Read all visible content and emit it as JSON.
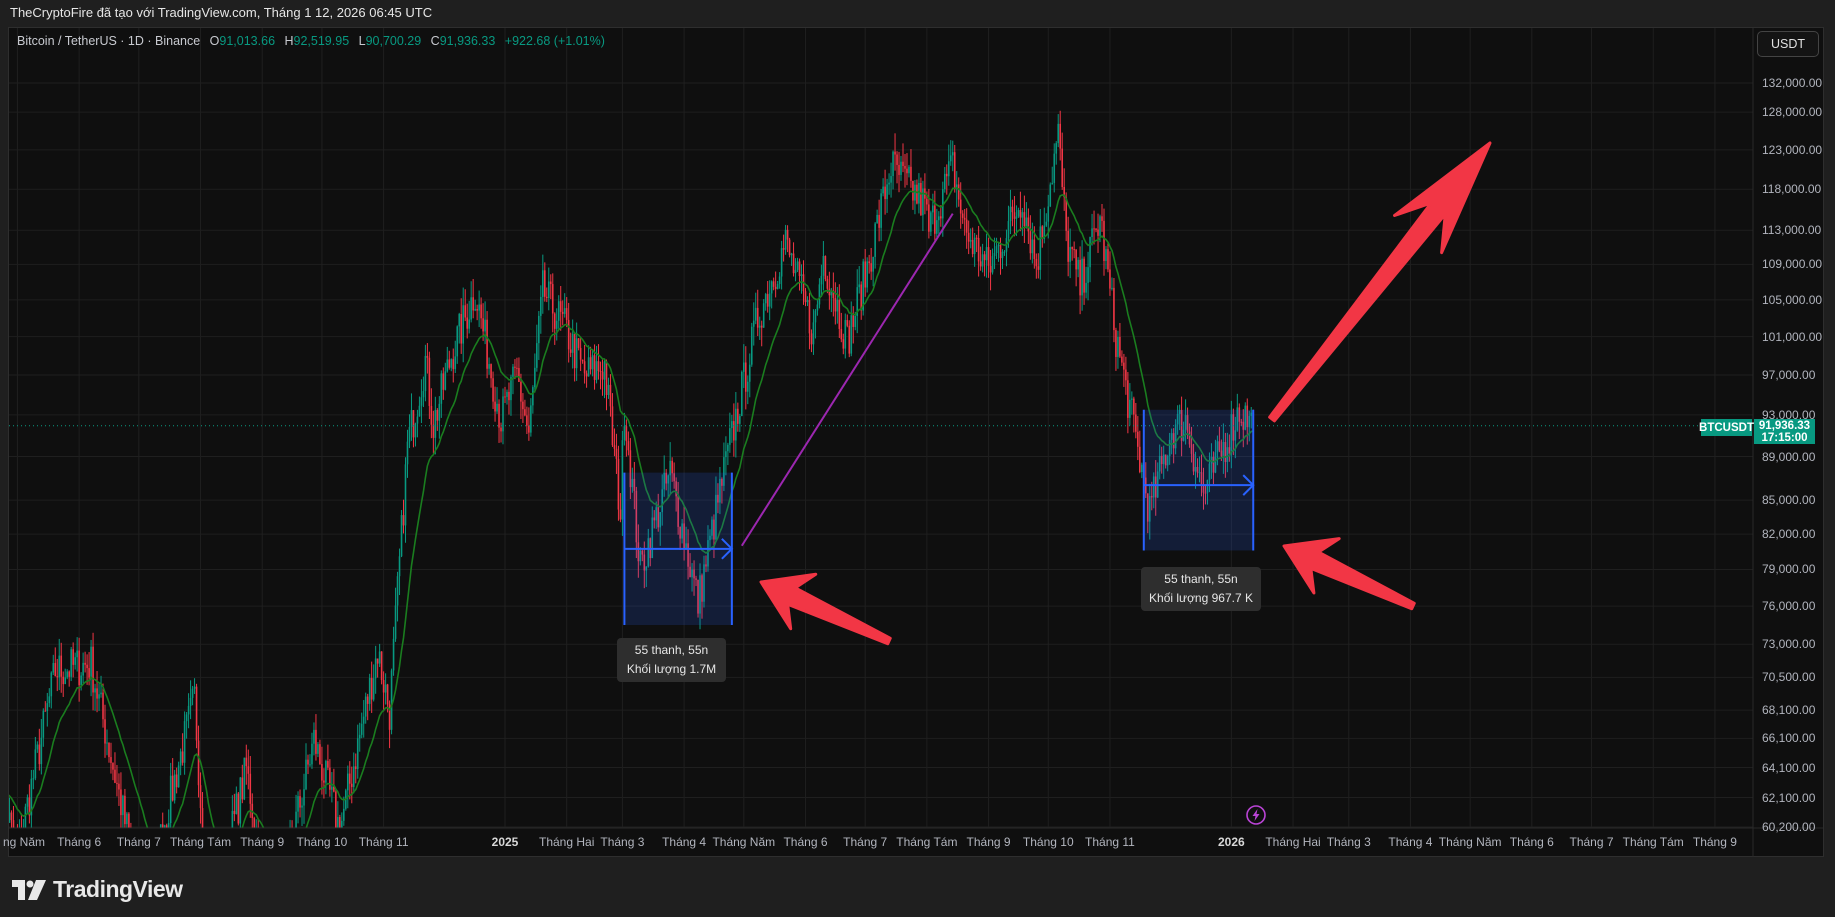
{
  "title_bar": "TheCryptoFire đã tạo với TradingView.com, Tháng 1 12, 2026 06:45 UTC",
  "legend": {
    "symbol": "Bitcoin / TetherUS · 1D · Binance",
    "open_label": "O",
    "open": "91,013.66",
    "high_label": "H",
    "high": "92,519.95",
    "low_label": "L",
    "low": "90,700.29",
    "close_label": "C",
    "close": "91,936.33",
    "change": "+922.68 (+1.01%)"
  },
  "currency_button": "USDT",
  "last_price": {
    "symbol": "BTCUSDT",
    "price": "91,936.33",
    "countdown": "17:15:00"
  },
  "measure_boxes": [
    {
      "bars": "55 thanh, 55n",
      "volume": "Khối lượng 1.7M"
    },
    {
      "bars": "55 thanh, 55n",
      "volume": "Khối lượng 967.7 K"
    }
  ],
  "logo_text": "TradingView",
  "colors": {
    "up": "#089981",
    "down": "#f23645",
    "ma": "#1a7d1f",
    "measure": "#2962ff",
    "trendline": "#9c27b0",
    "arrows": "#f23645"
  },
  "icons": {
    "alert": "lightning-icon",
    "logo": "tradingview-logo"
  },
  "chart_data": {
    "type": "candlestick",
    "symbol": "BTCUSDT",
    "interval": "1D",
    "scale": "log",
    "ylim": [
      60200,
      132000
    ],
    "grid": true,
    "y_ticks": [
      "132,000.00",
      "128,000.00",
      "123,000.00",
      "118,000.00",
      "113,000.00",
      "109,000.00",
      "105,000.00",
      "101,000.00",
      "97,000.00",
      "93,000.00",
      "89,000.00",
      "85,000.00",
      "82,000.00",
      "79,000.00",
      "76,000.00",
      "73,000.00",
      "70,500.00",
      "68,100.00",
      "66,100.00",
      "64,100.00",
      "62,100.00",
      "60,200.00"
    ],
    "x_ticks": [
      {
        "label": "ng Năm",
        "date": "2024-05-01"
      },
      {
        "label": "Tháng 6",
        "date": "2024-06-01"
      },
      {
        "label": "Tháng 7",
        "date": "2024-07-01"
      },
      {
        "label": "Tháng Tám",
        "date": "2024-08-01"
      },
      {
        "label": "Tháng 9",
        "date": "2024-09-01"
      },
      {
        "label": "Tháng 10",
        "date": "2024-10-01"
      },
      {
        "label": "Tháng 11",
        "date": "2024-11-01"
      },
      {
        "label": "2025",
        "date": "2025-01-01",
        "year": true
      },
      {
        "label": "Tháng Hai",
        "date": "2025-02-01"
      },
      {
        "label": "Tháng 3",
        "date": "2025-03-01"
      },
      {
        "label": "Tháng 4",
        "date": "2025-04-01"
      },
      {
        "label": "Tháng Năm",
        "date": "2025-05-01"
      },
      {
        "label": "Tháng 6",
        "date": "2025-06-01"
      },
      {
        "label": "Tháng 7",
        "date": "2025-07-01"
      },
      {
        "label": "Tháng Tám",
        "date": "2025-08-01"
      },
      {
        "label": "Tháng 9",
        "date": "2025-09-01"
      },
      {
        "label": "Tháng 10",
        "date": "2025-10-01"
      },
      {
        "label": "Tháng 11",
        "date": "2025-11-01"
      },
      {
        "label": "2026",
        "date": "2026-01-01",
        "year": true
      },
      {
        "label": "Tháng Hai",
        "date": "2026-02-01"
      },
      {
        "label": "Tháng 3",
        "date": "2026-03-01"
      },
      {
        "label": "Tháng 4",
        "date": "2026-04-01"
      },
      {
        "label": "Tháng Năm",
        "date": "2026-05-01"
      },
      {
        "label": "Tháng 6",
        "date": "2026-06-01"
      },
      {
        "label": "Tháng 7",
        "date": "2026-07-01"
      },
      {
        "label": "Tháng Tám",
        "date": "2026-08-01"
      },
      {
        "label": "Tháng 9",
        "date": "2026-09-01"
      }
    ],
    "close_path": [
      [
        "2024-04-20",
        64000
      ],
      [
        "2024-05-01",
        58500
      ],
      [
        "2024-05-20",
        71000
      ],
      [
        "2024-06-07",
        71500
      ],
      [
        "2024-06-24",
        60500
      ],
      [
        "2024-07-05",
        56000
      ],
      [
        "2024-07-29",
        69000
      ],
      [
        "2024-08-05",
        54000
      ],
      [
        "2024-08-24",
        64000
      ],
      [
        "2024-09-06",
        54000
      ],
      [
        "2024-09-27",
        66000
      ],
      [
        "2024-10-10",
        60000
      ],
      [
        "2024-10-29",
        72500
      ],
      [
        "2024-11-04",
        68000
      ],
      [
        "2024-11-13",
        90000
      ],
      [
        "2024-11-22",
        98500
      ],
      [
        "2024-11-26",
        92000
      ],
      [
        "2024-12-05",
        99000
      ],
      [
        "2024-12-17",
        106000
      ],
      [
        "2024-12-30",
        92500
      ],
      [
        "2025-01-07",
        97000
      ],
      [
        "2025-01-13",
        91000
      ],
      [
        "2025-01-20",
        106000
      ],
      [
        "2025-01-31",
        102000
      ],
      [
        "2025-02-10",
        97000
      ],
      [
        "2025-02-20",
        98000
      ],
      [
        "2025-02-28",
        84000
      ],
      [
        "2025-03-02",
        94000
      ],
      [
        "2025-03-10",
        79000
      ],
      [
        "2025-03-25",
        87500
      ],
      [
        "2025-04-08",
        76300
      ],
      [
        "2025-04-21",
        87500
      ],
      [
        "2025-05-08",
        103000
      ],
      [
        "2025-05-22",
        111500
      ],
      [
        "2025-06-05",
        101500
      ],
      [
        "2025-06-10",
        110000
      ],
      [
        "2025-06-22",
        100500
      ],
      [
        "2025-07-03",
        109500
      ],
      [
        "2025-07-14",
        121000
      ],
      [
        "2025-07-31",
        116000
      ],
      [
        "2025-08-02",
        113000
      ],
      [
        "2025-08-14",
        121000
      ],
      [
        "2025-08-20",
        113000
      ],
      [
        "2025-09-01",
        108500
      ],
      [
        "2025-09-18",
        117000
      ],
      [
        "2025-09-25",
        109000
      ],
      [
        "2025-10-06",
        125000
      ],
      [
        "2025-10-10",
        112000
      ],
      [
        "2025-10-17",
        106500
      ],
      [
        "2025-10-27",
        114500
      ],
      [
        "2025-11-04",
        101000
      ],
      [
        "2025-11-21",
        84000
      ],
      [
        "2025-12-02",
        91500
      ],
      [
        "2025-12-09",
        92500
      ],
      [
        "2025-12-18",
        85500
      ],
      [
        "2026-01-05",
        93500
      ],
      [
        "2026-01-12",
        91936.33
      ]
    ],
    "last_price": 91936.33,
    "measurements": [
      {
        "from": "2025-03-02",
        "to": "2025-04-25",
        "high": 87500,
        "low": 74500,
        "bars": 55
      },
      {
        "from": "2025-11-18",
        "to": "2026-01-12",
        "high": 93500,
        "low": 80600,
        "bars": 55
      }
    ],
    "trendline": [
      [
        "2025-04-30",
        81000
      ],
      [
        "2025-08-14",
        115000
      ]
    ]
  }
}
